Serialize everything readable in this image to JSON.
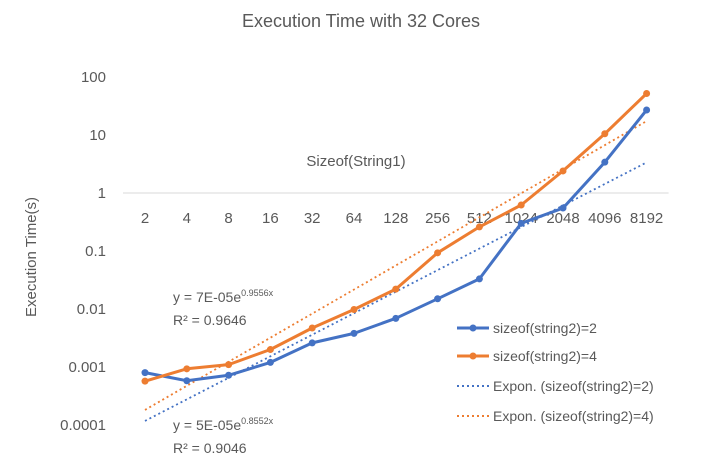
{
  "chart_data": {
    "type": "line",
    "title": "Execution Time with 32 Cores",
    "xlabel": "Sizeof(String1)",
    "ylabel": "Execution Time(s)",
    "yscale": "log",
    "ylim": [
      0.0001,
      100
    ],
    "yticks": [
      "0.0001",
      "0.001",
      "0.01",
      "0.1",
      "1",
      "10",
      "100"
    ],
    "categories": [
      "2",
      "4",
      "8",
      "16",
      "32",
      "64",
      "128",
      "256",
      "512",
      "1024",
      "2048",
      "4096",
      "8192"
    ],
    "series": [
      {
        "name": "sizeof(string2)=2",
        "color": "#4472C4",
        "values": [
          0.0008,
          0.00058,
          0.00072,
          0.0012,
          0.0026,
          0.0038,
          0.0069,
          0.015,
          0.033,
          0.3,
          0.55,
          3.4,
          27
        ]
      },
      {
        "name": "sizeof(string2)=4",
        "color": "#ED7D31",
        "values": [
          0.00057,
          0.00093,
          0.0011,
          0.002,
          0.0047,
          0.0098,
          0.022,
          0.093,
          0.26,
          0.62,
          2.4,
          10.5,
          52
        ]
      }
    ],
    "trendlines": [
      {
        "name": "Expon. (sizeof(string2)=2)",
        "color": "#4472C4",
        "a": 5e-05,
        "b": 0.8552,
        "equation_prefix": "y = 5E-05e",
        "equation_exp": "0.8552x",
        "r2": "R² = 0.9046"
      },
      {
        "name": "Expon. (sizeof(string2)=4)",
        "color": "#ED7D31",
        "a": 7e-05,
        "b": 0.9556,
        "equation_prefix": "y = 7E-05e",
        "equation_exp": "0.9556x",
        "r2": "R² = 0.9646"
      }
    ],
    "legend_position": "bottom-right"
  }
}
